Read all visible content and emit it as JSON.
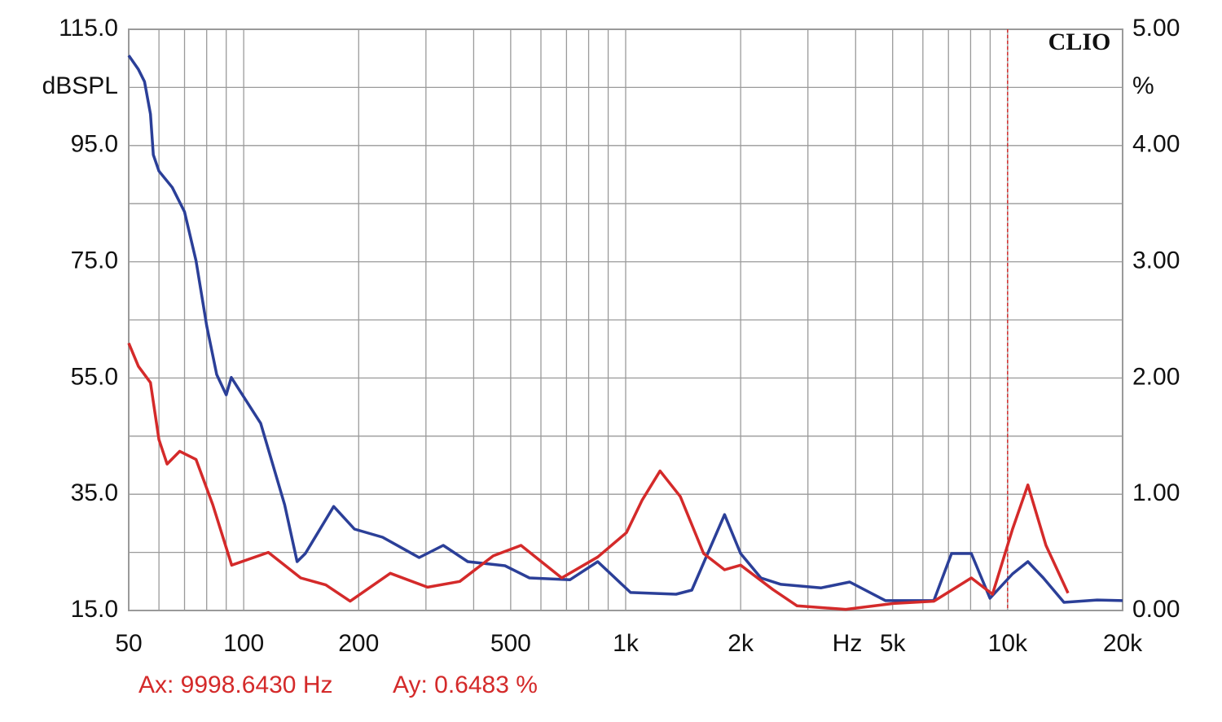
{
  "chart_data": {
    "type": "line",
    "x_scale": "log",
    "xlim": [
      50,
      20000
    ],
    "xticks": [
      {
        "value": 50,
        "label": "50"
      },
      {
        "value": 100,
        "label": "100"
      },
      {
        "value": 200,
        "label": "200"
      },
      {
        "value": 500,
        "label": "500"
      },
      {
        "value": 1000,
        "label": "1k"
      },
      {
        "value": 2000,
        "label": "2k"
      },
      {
        "value": 5000,
        "label": "5k"
      },
      {
        "value": 10000,
        "label": "10k"
      },
      {
        "value": 20000,
        "label": "20k"
      }
    ],
    "x_minor_ticks": [
      60,
      70,
      80,
      90,
      300,
      400,
      600,
      700,
      800,
      900,
      3000,
      4000,
      6000,
      7000,
      8000,
      9000
    ],
    "x_label": "Hz",
    "ylim": [
      15,
      115
    ],
    "yticks": [
      {
        "value": 115,
        "label": "115.0"
      },
      {
        "value": 95,
        "label": "95.0"
      },
      {
        "value": 75,
        "label": "75.0"
      },
      {
        "value": 55,
        "label": "55.0"
      },
      {
        "value": 35,
        "label": "35.0"
      },
      {
        "value": 15,
        "label": "15.0"
      }
    ],
    "y_minor_ticks": [
      105,
      85,
      65,
      45,
      25
    ],
    "y_label": "dBSPL",
    "y2lim": [
      0,
      5
    ],
    "y2ticks": [
      {
        "value": 5,
        "label": "5.00"
      },
      {
        "value": 4,
        "label": "4.00"
      },
      {
        "value": 3,
        "label": "3.00"
      },
      {
        "value": 2,
        "label": "2.00"
      },
      {
        "value": 1,
        "label": "1.00"
      },
      {
        "value": 0,
        "label": "0.00"
      }
    ],
    "y2_label": "%",
    "grid": true,
    "logo": "CLIO",
    "cursor": {
      "x": 9998.643,
      "color": "#d42a2a",
      "x_text": "Ax: 9998.6430 Hz",
      "y_text": "Ay: 0.6483 %"
    },
    "series": [
      {
        "color": "#2b3f98",
        "axis": "y",
        "x": [
          50,
          53,
          55,
          57,
          58,
          60,
          65,
          70,
          75,
          80,
          85,
          90,
          92.8,
          110.8,
          128,
          138,
          145,
          172,
          195,
          231,
          288,
          333,
          386,
          483,
          560,
          715,
          845,
          1030,
          1355,
          1490,
          1640,
          1815,
          2000,
          2260,
          2550,
          3250,
          3860,
          4790,
          6410,
          7130,
          8035,
          8990,
          10300,
          11300,
          12400,
          14040,
          17160,
          20000
        ],
        "values": [
          110.5,
          108.1,
          106,
          100.4,
          93.4,
          90.6,
          87.8,
          83.6,
          75.2,
          64,
          55.6,
          52.1,
          55.1,
          47.2,
          33.2,
          23.4,
          24.8,
          32.9,
          29.0,
          27.6,
          24.1,
          26.2,
          23.4,
          22.7,
          20.6,
          20.3,
          23.4,
          18.1,
          17.8,
          18.5,
          24.8,
          31.5,
          24.8,
          20.6,
          19.5,
          18.9,
          19.9,
          16.7,
          16.7,
          24.8,
          24.8,
          17.1,
          21.3,
          23.4,
          20.6,
          16.4,
          16.8,
          16.7
        ]
      },
      {
        "color": "#d42a2a",
        "axis": "y2",
        "x": [
          50,
          53,
          57,
          60,
          63,
          68,
          75,
          83,
          93,
          116,
          141,
          164,
          190,
          242,
          303,
          368,
          450,
          532,
          680,
          845,
          1005,
          1105,
          1230,
          1390,
          1600,
          1815,
          2000,
          2430,
          2810,
          3770,
          5020,
          6410,
          8035,
          9130,
          10300,
          11300,
          12600,
          14390
        ],
        "values": [
          2.3,
          2.1,
          1.96,
          1.47,
          1.26,
          1.37,
          1.3,
          0.91,
          0.39,
          0.5,
          0.28,
          0.22,
          0.08,
          0.32,
          0.2,
          0.25,
          0.47,
          0.56,
          0.28,
          0.46,
          0.67,
          0.95,
          1.2,
          0.98,
          0.49,
          0.35,
          0.39,
          0.18,
          0.04,
          0.01,
          0.06,
          0.08,
          0.28,
          0.14,
          0.7,
          1.08,
          0.56,
          0.15
        ]
      }
    ]
  }
}
